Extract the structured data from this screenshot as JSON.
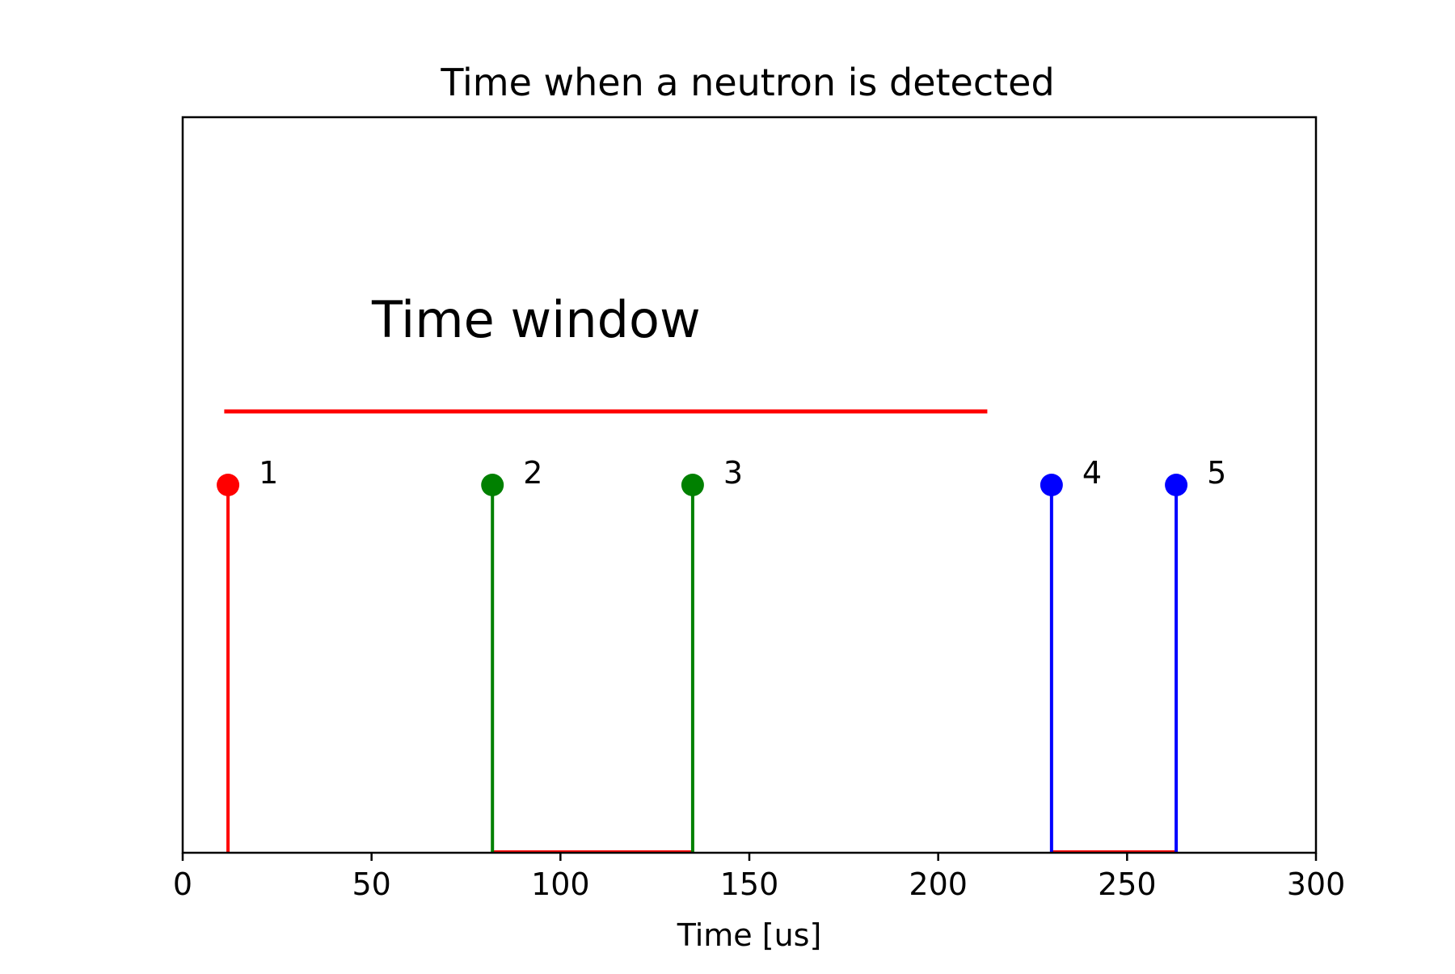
{
  "chart_data": {
    "type": "stem",
    "title": "Time when a neutron is detected",
    "xlabel": "Time [us]",
    "ylabel": "",
    "xlim": [
      0,
      300
    ],
    "ylim": [
      0,
      1
    ],
    "x_ticks": [
      0,
      50,
      100,
      150,
      200,
      250,
      300
    ],
    "y_ticks_visible": false,
    "grid": false,
    "events": [
      {
        "label": "1",
        "x": 12,
        "y": 0.5,
        "color": "#ff0000"
      },
      {
        "label": "2",
        "x": 82,
        "y": 0.5,
        "color": "#008000"
      },
      {
        "label": "3",
        "x": 135,
        "y": 0.5,
        "color": "#008000"
      },
      {
        "label": "4",
        "x": 230,
        "y": 0.5,
        "color": "#0000ff"
      },
      {
        "label": "5",
        "x": 263,
        "y": 0.5,
        "color": "#0000ff"
      }
    ],
    "time_window": {
      "text": "Time window",
      "x_start": 11,
      "x_end": 213,
      "y": 0.6,
      "color": "#ff0000"
    },
    "baseline_segments": [
      {
        "x_start": 82,
        "x_end": 135,
        "color": "#ff0000"
      },
      {
        "x_start": 230,
        "x_end": 263,
        "color": "#ff0000"
      }
    ]
  }
}
